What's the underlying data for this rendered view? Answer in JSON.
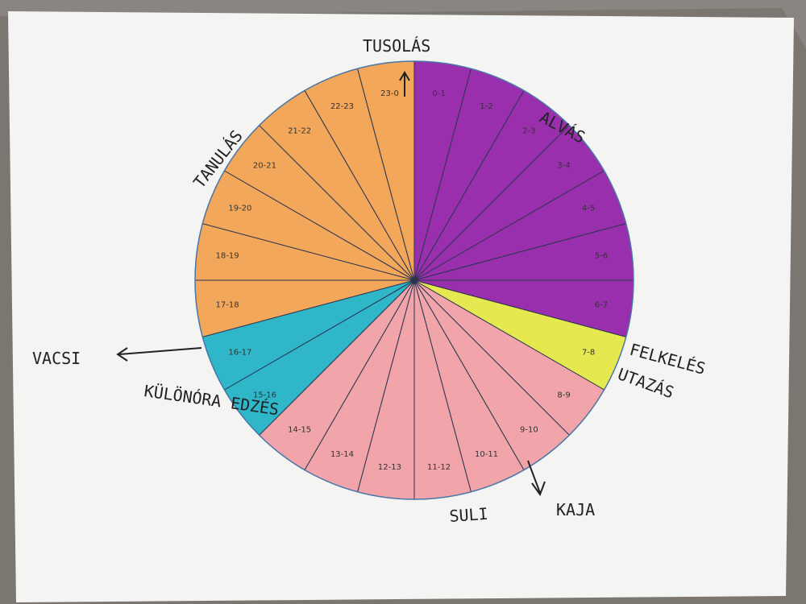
{
  "chart_data": {
    "type": "pie",
    "categories": [
      "0-1",
      "1-2",
      "2-3",
      "3-4",
      "4-5",
      "5-6",
      "6-7",
      "7-8",
      "8-9",
      "9-10",
      "10-11",
      "11-12",
      "12-13",
      "13-14",
      "14-15",
      "15-16",
      "16-17",
      "17-18",
      "18-19",
      "19-20",
      "20-21",
      "21-22",
      "22-23",
      "23-0"
    ],
    "values": [
      1,
      1,
      1,
      1,
      1,
      1,
      1,
      1,
      1,
      1,
      1,
      1,
      1,
      1,
      1,
      1,
      1,
      1,
      1,
      1,
      1,
      1,
      1,
      1
    ],
    "colors": [
      "#9a2fae",
      "#9a2fae",
      "#9a2fae",
      "#9a2fae",
      "#9a2fae",
      "#9a2fae",
      "#9a2fae",
      "#e6e850",
      "#f2a4ab",
      "#f2a4ab",
      "#f2a4ab",
      "#f2a4ab",
      "#f2a4ab",
      "#f2a4ab",
      "#f2a4ab",
      "#2fb6c9",
      "#2fb6c9",
      "#f2a75a",
      "#f2a75a",
      "#f2a75a",
      "#f2a75a",
      "#f2a75a",
      "#f2a75a",
      "#f2a75a"
    ],
    "annotations": [
      "TUSOLÁS",
      "ALVÁS",
      "FELKELÉS",
      "UTAZÁS",
      "KAJA",
      "SULI",
      "KÜLÖNÓRA EDZÉS",
      "VACSI",
      "TANULÁS"
    ]
  }
}
